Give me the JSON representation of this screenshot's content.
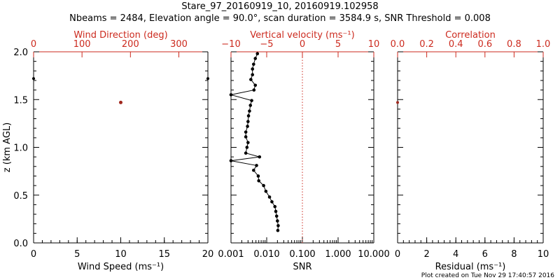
{
  "header": {
    "title": "Stare_97_20160919_10, 20160919.102958",
    "subtitle": "Nbeams = 2484, Elevation angle = 90.0°, scan duration = 3584.9 s, SNR Threshold = 0.008"
  },
  "footer": {
    "created": "Plot created on Tue Nov 29 17:40:57 2016"
  },
  "colors": {
    "axis": "#000000",
    "top_axis": "#cc2a1e",
    "wind_point": "#a0281e",
    "zero_line": "#cc2a1e"
  },
  "chart_data": [
    {
      "type": "scatter",
      "name": "wind-panel",
      "ylabel": "z (km AGL)",
      "ylim": [
        0,
        2
      ],
      "yticks": [
        "0.0",
        "0.5",
        "1.0",
        "1.5",
        "2.0"
      ],
      "xlabel": "Wind Speed (ms⁻¹)",
      "xlim": [
        0,
        20
      ],
      "xticks": [
        "0",
        "5",
        "10",
        "15",
        "20"
      ],
      "top_label": "Wind Direction (deg)",
      "top_lim": [
        0,
        360
      ],
      "top_ticks": [
        "0",
        "100",
        "200",
        "300"
      ],
      "speed_points": [
        {
          "x": 0,
          "z": 1.72
        },
        {
          "x": 20,
          "z": 1.72
        }
      ],
      "direction_points": [
        {
          "x": 180,
          "z": 1.47
        }
      ]
    },
    {
      "type": "line",
      "name": "snr-panel",
      "ylim": [
        0,
        2
      ],
      "xlabel": "SNR",
      "xscale": "log",
      "xlim": [
        0.001,
        10
      ],
      "xticks": [
        "0.001",
        "0.010",
        "0.100",
        "1.000",
        "10.000"
      ],
      "top_label": "Vertical velocity (ms⁻¹)",
      "top_lim": [
        -10,
        10
      ],
      "top_ticks": [
        "−10",
        "−5",
        "0",
        "5",
        "10"
      ],
      "snr_profile": [
        {
          "snr": 0.0055,
          "z": 1.98
        },
        {
          "snr": 0.0048,
          "z": 1.93
        },
        {
          "snr": 0.0043,
          "z": 1.87
        },
        {
          "snr": 0.004,
          "z": 1.82
        },
        {
          "snr": 0.004,
          "z": 1.76
        },
        {
          "snr": 0.0036,
          "z": 1.71
        },
        {
          "snr": 0.0048,
          "z": 1.65
        },
        {
          "snr": 0.0044,
          "z": 1.6
        },
        {
          "snr": 0.001,
          "z": 1.55
        },
        {
          "snr": 0.0038,
          "z": 1.49
        },
        {
          "snr": 0.0035,
          "z": 1.44
        },
        {
          "snr": 0.0033,
          "z": 1.38
        },
        {
          "snr": 0.0031,
          "z": 1.33
        },
        {
          "snr": 0.003,
          "z": 1.27
        },
        {
          "snr": 0.0029,
          "z": 1.22
        },
        {
          "snr": 0.0026,
          "z": 1.16
        },
        {
          "snr": 0.0026,
          "z": 1.11
        },
        {
          "snr": 0.003,
          "z": 1.05
        },
        {
          "snr": 0.0028,
          "z": 1.0
        },
        {
          "snr": 0.0026,
          "z": 0.94
        },
        {
          "snr": 0.0063,
          "z": 0.9
        },
        {
          "snr": 0.001,
          "z": 0.86
        },
        {
          "snr": 0.0052,
          "z": 0.81
        },
        {
          "snr": 0.0043,
          "z": 0.76
        },
        {
          "snr": 0.0058,
          "z": 0.7
        },
        {
          "snr": 0.006,
          "z": 0.65
        },
        {
          "snr": 0.0082,
          "z": 0.6
        },
        {
          "snr": 0.0095,
          "z": 0.54
        },
        {
          "snr": 0.012,
          "z": 0.48
        },
        {
          "snr": 0.014,
          "z": 0.43
        },
        {
          "snr": 0.017,
          "z": 0.38
        },
        {
          "snr": 0.018,
          "z": 0.33
        },
        {
          "snr": 0.019,
          "z": 0.28
        },
        {
          "snr": 0.02,
          "z": 0.23
        },
        {
          "snr": 0.021,
          "z": 0.18
        },
        {
          "snr": 0.0205,
          "z": 0.13
        }
      ],
      "vertical_velocity_zero_line": 0
    },
    {
      "type": "scatter",
      "name": "correlation-panel",
      "ylim": [
        0,
        2
      ],
      "xlabel": "Residual (ms⁻¹)",
      "xlim": [
        0,
        10
      ],
      "xticks": [
        "0",
        "2",
        "4",
        "6",
        "8",
        "10"
      ],
      "top_label": "Correlation",
      "top_lim": [
        0,
        1
      ],
      "top_ticks": [
        "0.0",
        "0.2",
        "0.4",
        "0.6",
        "0.8",
        "1.0"
      ],
      "correlation_points": [
        {
          "x": 0,
          "z": 1.47
        }
      ]
    }
  ]
}
